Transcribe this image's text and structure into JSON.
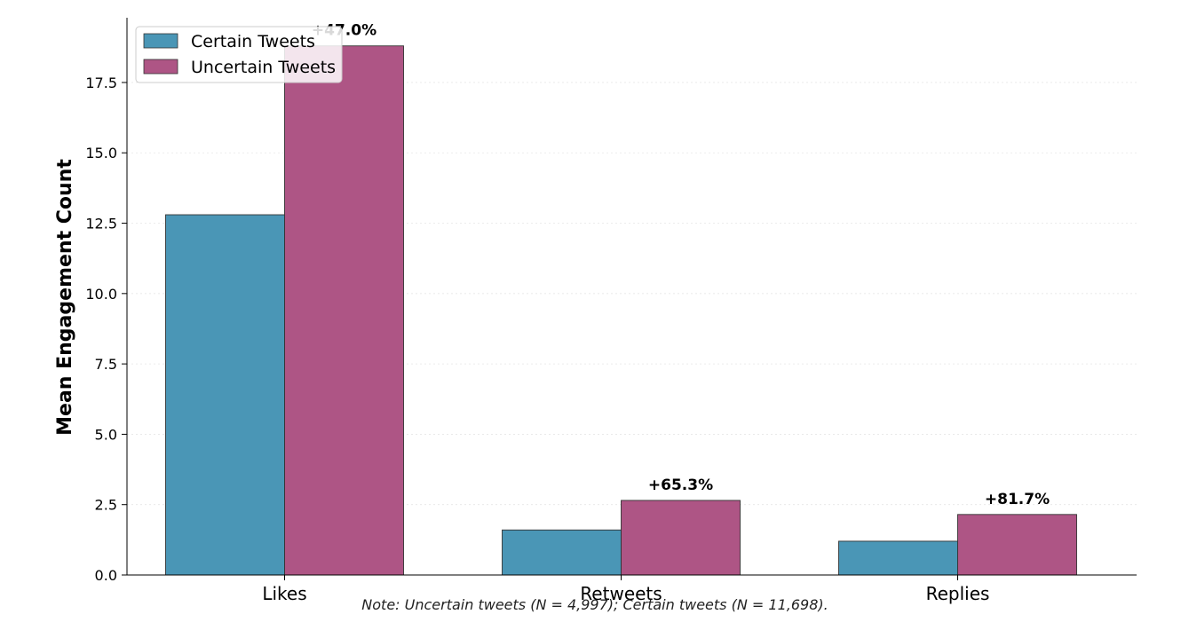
{
  "chart_data": {
    "type": "bar",
    "title": "",
    "xlabel": "",
    "ylabel": "Mean Engagement Count",
    "categories": [
      "Likes",
      "Retweets",
      "Replies"
    ],
    "series": [
      {
        "name": "Certain Tweets",
        "values": [
          12.8,
          1.6,
          1.2
        ],
        "color": "#4a96b6"
      },
      {
        "name": "Uncertain Tweets",
        "values": [
          18.8,
          2.65,
          2.15
        ],
        "color": "#ae5585"
      }
    ],
    "annotations": [
      "+47.0%",
      "+65.3%",
      "+81.7%"
    ],
    "ylim": [
      0,
      19.8
    ],
    "yticks": [
      "0.0",
      "2.5",
      "5.0",
      "7.5",
      "10.0",
      "12.5",
      "15.0",
      "17.5"
    ],
    "ytick_values": [
      0,
      2.5,
      5,
      7.5,
      10,
      12.5,
      15,
      17.5
    ],
    "grid": true,
    "legend_position": "top-left",
    "note": "Note: Uncertain tweets (N = 4,997); Certain tweets (N = 11,698)."
  }
}
